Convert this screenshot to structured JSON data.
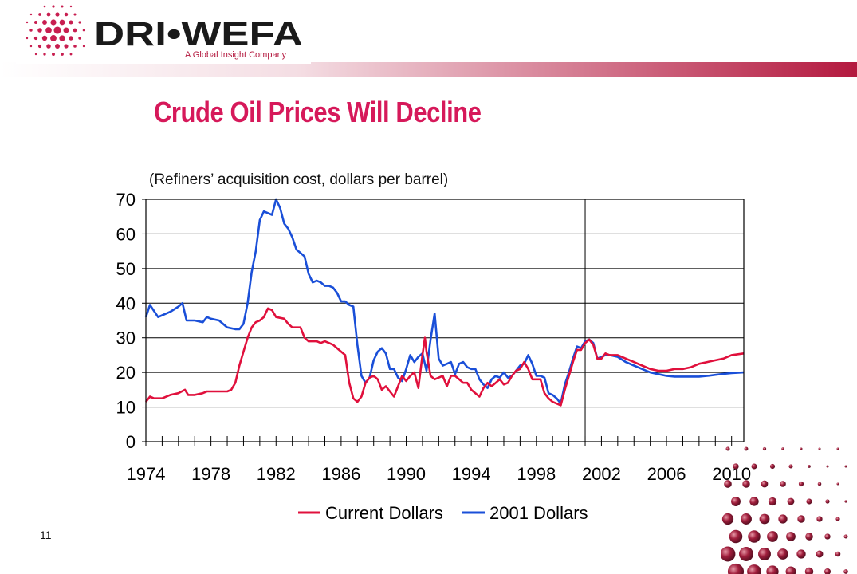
{
  "header": {
    "logo_text": "DRI•WEFA",
    "logo_tagline": "A Global Insight Company"
  },
  "slide": {
    "title": "Crude Oil Prices Will Decline",
    "subtitle": "(Refiners’ acquisition cost, dollars  per barrel)",
    "page_number": "11"
  },
  "colors": {
    "title": "#d6195a",
    "current": "#e0103c",
    "real": "#1a4fd8",
    "logo_dots": "#c81e50",
    "accent_band": "#b4193f"
  },
  "chart_data": {
    "type": "line",
    "title": "",
    "xlabel": "",
    "ylabel": "",
    "xlim": [
      1974,
      2010.75
    ],
    "ylim": [
      0,
      70
    ],
    "yticks": [
      0,
      10,
      20,
      30,
      40,
      50,
      60,
      70
    ],
    "xticks": [
      1974,
      1978,
      1982,
      1986,
      1990,
      1994,
      1998,
      2002,
      2006,
      2010
    ],
    "forecast_divider": 2001,
    "grid": "horizontal",
    "legend": "bottom",
    "series": [
      {
        "name": "Current Dollars",
        "points": [
          [
            1974,
            11.5
          ],
          [
            1974.25,
            13
          ],
          [
            1974.5,
            12.5
          ],
          [
            1975,
            12.5
          ],
          [
            1975.5,
            13.5
          ],
          [
            1976,
            14
          ],
          [
            1976.4,
            15
          ],
          [
            1976.6,
            13.5
          ],
          [
            1977,
            13.5
          ],
          [
            1977.5,
            14
          ],
          [
            1977.75,
            14.5
          ],
          [
            1978,
            14.5
          ],
          [
            1978.5,
            14.5
          ],
          [
            1979,
            14.5
          ],
          [
            1979.25,
            15
          ],
          [
            1979.5,
            17
          ],
          [
            1979.75,
            22
          ],
          [
            1980,
            26
          ],
          [
            1980.25,
            30
          ],
          [
            1980.5,
            33
          ],
          [
            1980.75,
            34.5
          ],
          [
            1981,
            35
          ],
          [
            1981.25,
            36
          ],
          [
            1981.5,
            38.5
          ],
          [
            1981.75,
            38
          ],
          [
            1982,
            36
          ],
          [
            1982.5,
            35.5
          ],
          [
            1982.75,
            34
          ],
          [
            1983,
            33
          ],
          [
            1983.5,
            33
          ],
          [
            1983.75,
            30
          ],
          [
            1984,
            29
          ],
          [
            1984.25,
            29
          ],
          [
            1984.5,
            29
          ],
          [
            1984.75,
            28.5
          ],
          [
            1985,
            29
          ],
          [
            1985.25,
            28.5
          ],
          [
            1985.5,
            28
          ],
          [
            1985.75,
            27
          ],
          [
            1986,
            26
          ],
          [
            1986.25,
            25
          ],
          [
            1986.5,
            17
          ],
          [
            1986.75,
            12.5
          ],
          [
            1987,
            11.5
          ],
          [
            1987.25,
            13
          ],
          [
            1987.5,
            17
          ],
          [
            1987.75,
            18.5
          ],
          [
            1988,
            19
          ],
          [
            1988.25,
            18
          ],
          [
            1988.5,
            15
          ],
          [
            1988.75,
            16
          ],
          [
            1989,
            14.5
          ],
          [
            1989.25,
            13
          ],
          [
            1989.5,
            16
          ],
          [
            1989.75,
            19
          ],
          [
            1990,
            17.5
          ],
          [
            1990.25,
            19
          ],
          [
            1990.5,
            20
          ],
          [
            1990.75,
            15.5
          ],
          [
            1991,
            25
          ],
          [
            1991.15,
            30
          ],
          [
            1991.25,
            26
          ],
          [
            1991.5,
            19
          ],
          [
            1991.75,
            18
          ],
          [
            1992,
            18.5
          ],
          [
            1992.25,
            19
          ],
          [
            1992.5,
            16
          ],
          [
            1992.75,
            19
          ],
          [
            1993,
            19
          ],
          [
            1993.25,
            18
          ],
          [
            1993.5,
            17
          ],
          [
            1993.75,
            17
          ],
          [
            1994,
            15
          ],
          [
            1994.25,
            14
          ],
          [
            1994.5,
            13
          ],
          [
            1994.75,
            15.5
          ],
          [
            1995,
            17
          ],
          [
            1995.25,
            16
          ],
          [
            1995.5,
            17
          ],
          [
            1995.75,
            18
          ],
          [
            1996,
            16.5
          ],
          [
            1996.25,
            17
          ],
          [
            1996.5,
            19
          ],
          [
            1996.75,
            20.5
          ],
          [
            1997,
            21
          ],
          [
            1997.25,
            23
          ],
          [
            1997.5,
            21
          ],
          [
            1997.75,
            18
          ],
          [
            1998,
            18
          ],
          [
            1998.25,
            18
          ],
          [
            1998.5,
            14
          ],
          [
            1998.75,
            12.5
          ],
          [
            1999,
            11.5
          ],
          [
            1999.25,
            11
          ],
          [
            1999.5,
            10.5
          ],
          [
            1999.75,
            15
          ],
          [
            2000,
            19
          ],
          [
            2000.25,
            23
          ],
          [
            2000.5,
            26.5
          ],
          [
            2000.75,
            26.5
          ],
          [
            2001,
            28.5
          ],
          [
            2001.25,
            29.5
          ],
          [
            2001.5,
            28
          ],
          [
            2001.75,
            24
          ],
          [
            2002,
            24
          ],
          [
            2002.25,
            25.5
          ],
          [
            2002.5,
            25
          ],
          [
            2003,
            25
          ],
          [
            2003.5,
            24
          ],
          [
            2004,
            23
          ],
          [
            2004.5,
            22
          ],
          [
            2005,
            21
          ],
          [
            2005.5,
            20.5
          ],
          [
            2006,
            20.5
          ],
          [
            2006.5,
            21
          ],
          [
            2007,
            21
          ],
          [
            2007.5,
            21.5
          ],
          [
            2008,
            22.5
          ],
          [
            2008.5,
            23
          ],
          [
            2009,
            23.5
          ],
          [
            2009.5,
            24
          ],
          [
            2010,
            25
          ],
          [
            2010.75,
            25.5
          ]
        ]
      },
      {
        "name": "2001 Dollars",
        "points": [
          [
            1974,
            36
          ],
          [
            1974.25,
            39.5
          ],
          [
            1974.75,
            36
          ],
          [
            1975,
            36.5
          ],
          [
            1975.5,
            37.5
          ],
          [
            1976,
            39
          ],
          [
            1976.25,
            40
          ],
          [
            1976.5,
            35
          ],
          [
            1977,
            35
          ],
          [
            1977.5,
            34.5
          ],
          [
            1977.75,
            36
          ],
          [
            1978,
            35.5
          ],
          [
            1978.5,
            35
          ],
          [
            1979,
            33
          ],
          [
            1979.5,
            32.5
          ],
          [
            1979.75,
            32.5
          ],
          [
            1980,
            34
          ],
          [
            1980.25,
            40
          ],
          [
            1980.5,
            49
          ],
          [
            1980.75,
            55
          ],
          [
            1981,
            64
          ],
          [
            1981.25,
            66.5
          ],
          [
            1981.75,
            65.5
          ],
          [
            1982,
            70
          ],
          [
            1982.25,
            67.5
          ],
          [
            1982.5,
            63
          ],
          [
            1982.75,
            61.5
          ],
          [
            1983,
            59
          ],
          [
            1983.25,
            55.5
          ],
          [
            1983.5,
            54.5
          ],
          [
            1983.75,
            53.5
          ],
          [
            1984,
            48.5
          ],
          [
            1984.25,
            46
          ],
          [
            1984.5,
            46.5
          ],
          [
            1984.75,
            46
          ],
          [
            1985,
            45
          ],
          [
            1985.25,
            45
          ],
          [
            1985.5,
            44.5
          ],
          [
            1985.75,
            43
          ],
          [
            1986,
            40.5
          ],
          [
            1986.25,
            40.5
          ],
          [
            1986.5,
            39.5
          ],
          [
            1986.75,
            39
          ],
          [
            1987,
            28
          ],
          [
            1987.25,
            19
          ],
          [
            1987.5,
            17
          ],
          [
            1987.75,
            18.5
          ],
          [
            1988,
            23.5
          ],
          [
            1988.25,
            26
          ],
          [
            1988.5,
            27
          ],
          [
            1988.75,
            25.5
          ],
          [
            1989,
            21
          ],
          [
            1989.25,
            21
          ],
          [
            1989.5,
            18.5
          ],
          [
            1989.75,
            17.5
          ],
          [
            1990,
            21
          ],
          [
            1990.25,
            25
          ],
          [
            1990.5,
            23
          ],
          [
            1990.75,
            24.5
          ],
          [
            1991,
            25.5
          ],
          [
            1991.25,
            20.5
          ],
          [
            1991.5,
            29.5
          ],
          [
            1991.75,
            37
          ],
          [
            1992,
            24
          ],
          [
            1992.25,
            22
          ],
          [
            1992.5,
            22.5
          ],
          [
            1992.75,
            23
          ],
          [
            1993,
            19.5
          ],
          [
            1993.25,
            22.5
          ],
          [
            1993.5,
            23
          ],
          [
            1993.75,
            21.5
          ],
          [
            1994,
            21
          ],
          [
            1994.25,
            21
          ],
          [
            1994.5,
            18
          ],
          [
            1994.75,
            16.5
          ],
          [
            1995,
            15.5
          ],
          [
            1995.25,
            18
          ],
          [
            1995.5,
            19
          ],
          [
            1995.75,
            18.5
          ],
          [
            1996,
            20
          ],
          [
            1996.25,
            18.5
          ],
          [
            1996.5,
            19
          ],
          [
            1996.75,
            20.5
          ],
          [
            1997,
            22
          ],
          [
            1997.25,
            22.5
          ],
          [
            1997.5,
            25
          ],
          [
            1997.75,
            22.5
          ],
          [
            1998,
            19
          ],
          [
            1998.25,
            19
          ],
          [
            1998.5,
            18.5
          ],
          [
            1998.75,
            14
          ],
          [
            1999,
            13.5
          ],
          [
            1999.25,
            12.5
          ],
          [
            1999.5,
            11
          ],
          [
            1999.75,
            16.5
          ],
          [
            2000,
            20
          ],
          [
            2000.25,
            24
          ],
          [
            2000.5,
            27.5
          ],
          [
            2000.75,
            27
          ],
          [
            2001,
            29
          ],
          [
            2001.25,
            29.5
          ],
          [
            2001.5,
            28.5
          ],
          [
            2001.75,
            24
          ],
          [
            2002,
            24.5
          ],
          [
            2002.25,
            25
          ],
          [
            2002.5,
            25
          ],
          [
            2003,
            24.5
          ],
          [
            2003.5,
            23
          ],
          [
            2004,
            22
          ],
          [
            2004.5,
            21
          ],
          [
            2005,
            20
          ],
          [
            2005.5,
            19.5
          ],
          [
            2006,
            19
          ],
          [
            2006.5,
            18.8
          ],
          [
            2007,
            18.8
          ],
          [
            2007.5,
            18.8
          ],
          [
            2008,
            18.8
          ],
          [
            2008.5,
            19
          ],
          [
            2009,
            19.3
          ],
          [
            2009.5,
            19.6
          ],
          [
            2010,
            19.8
          ],
          [
            2010.75,
            20
          ]
        ]
      }
    ]
  }
}
